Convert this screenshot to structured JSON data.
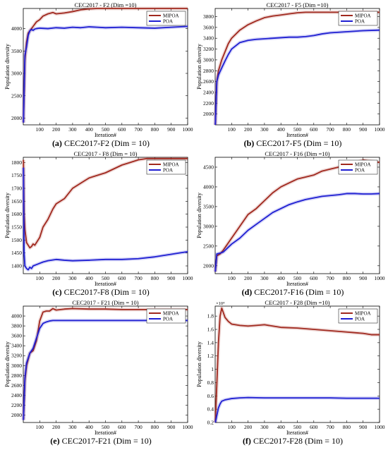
{
  "colors": {
    "mipoa": "#A0281E",
    "poa": "#1E1ED2",
    "axis": "#000000",
    "grid": "#dcdcdc"
  },
  "chart_data": [
    {
      "type": "line",
      "title": "CEC2017 - F2 (Dim =10)",
      "caption_label": "(a)",
      "caption_text": "CEC2017-F2 (Dim = 10)",
      "xlabel": "Iteration#",
      "ylabel": "Population diversity",
      "xlim": [
        0,
        1000
      ],
      "ylim": [
        1850,
        4450
      ],
      "xticks": [
        100,
        200,
        300,
        400,
        500,
        600,
        700,
        800,
        900,
        1000
      ],
      "xtick_labels": [
        "100",
        "200",
        "300",
        "400",
        "500",
        "600",
        "700",
        "800",
        "900",
        "1000"
      ],
      "yticks": [
        2000,
        2500,
        3000,
        3500,
        4000
      ],
      "ytick_labels": [
        "2000",
        "2500",
        "3000",
        "3500",
        "4000"
      ],
      "legend_position": "top-right",
      "grid": false,
      "series": [
        {
          "name": "MIPOA",
          "color": "#A0281E",
          "x": [
            1,
            10,
            20,
            30,
            40,
            50,
            60,
            70,
            80,
            100,
            120,
            150,
            180,
            200,
            250,
            300,
            350,
            400,
            450,
            500,
            600,
            700,
            800,
            900,
            1000
          ],
          "y": [
            1900,
            3300,
            3700,
            3900,
            3950,
            4000,
            4050,
            4100,
            4150,
            4200,
            4280,
            4330,
            4360,
            4330,
            4350,
            4380,
            4420,
            4440,
            4450,
            4450,
            4450,
            4450,
            4450,
            4450,
            4450
          ]
        },
        {
          "name": "POA",
          "color": "#1E1ED2",
          "x": [
            1,
            10,
            20,
            30,
            40,
            50,
            60,
            70,
            80,
            100,
            150,
            200,
            250,
            300,
            350,
            400,
            450,
            500,
            600,
            700,
            800,
            900,
            1000
          ],
          "y": [
            1900,
            3400,
            3600,
            3850,
            3950,
            3980,
            3960,
            3990,
            4000,
            4010,
            4000,
            4020,
            4010,
            4030,
            4020,
            4040,
            4030,
            4020,
            4030,
            4020,
            4010,
            4030,
            4050
          ]
        }
      ]
    },
    {
      "type": "line",
      "title": "CEC2017 - F5 (Dim =10)",
      "caption_label": "(b)",
      "caption_text": "CEC2017-F5 (Dim = 10)",
      "xlabel": "Iteration#",
      "ylabel": "Population diversity",
      "xlim": [
        0,
        1000
      ],
      "ylim": [
        1800,
        3950
      ],
      "xticks": [
        100,
        200,
        300,
        400,
        500,
        600,
        700,
        800,
        900,
        1000
      ],
      "xtick_labels": [
        "100",
        "200",
        "300",
        "400",
        "500",
        "600",
        "700",
        "800",
        "900",
        "1000"
      ],
      "yticks": [
        2000,
        2200,
        2400,
        2600,
        2800,
        3000,
        3200,
        3400,
        3600,
        3800
      ],
      "ytick_labels": [
        "2000",
        "2200",
        "2400",
        "2600",
        "2800",
        "3000",
        "3200",
        "3400",
        "3600",
        "3800"
      ],
      "legend_position": "top-right",
      "grid": false,
      "series": [
        {
          "name": "MIPOA",
          "color": "#A0281E",
          "x": [
            1,
            10,
            20,
            40,
            60,
            80,
            100,
            150,
            200,
            250,
            300,
            350,
            400,
            450,
            500,
            550,
            600,
            700,
            800,
            900,
            1000
          ],
          "y": [
            1800,
            2600,
            2800,
            3000,
            3150,
            3300,
            3400,
            3550,
            3650,
            3720,
            3780,
            3810,
            3830,
            3850,
            3870,
            3880,
            3880,
            3880,
            3880,
            3880,
            3880
          ]
        },
        {
          "name": "POA",
          "color": "#1E1ED2",
          "x": [
            1,
            10,
            20,
            40,
            60,
            80,
            100,
            150,
            200,
            250,
            300,
            350,
            400,
            450,
            500,
            550,
            600,
            650,
            700,
            800,
            900,
            1000
          ],
          "y": [
            1800,
            2600,
            2720,
            2850,
            2980,
            3100,
            3200,
            3320,
            3360,
            3380,
            3390,
            3400,
            3410,
            3420,
            3420,
            3430,
            3450,
            3480,
            3500,
            3520,
            3540,
            3550
          ]
        }
      ]
    },
    {
      "type": "line",
      "title": "CEC2017 - F8 (Dim = 10)",
      "caption_label": "(c)",
      "caption_text": "CEC2017-F8 (Dim = 10)",
      "xlabel": "Iteration#",
      "ylabel": "Population diversity",
      "xlim": [
        0,
        1000
      ],
      "ylim": [
        1370,
        1820
      ],
      "xticks": [
        100,
        200,
        300,
        400,
        500,
        600,
        700,
        800,
        900,
        1000
      ],
      "xtick_labels": [
        "100",
        "200",
        "300",
        "400",
        "500",
        "600",
        "700",
        "800",
        "900",
        "1000"
      ],
      "yticks": [
        1400,
        1450,
        1500,
        1550,
        1600,
        1650,
        1700,
        1750,
        1800
      ],
      "ytick_labels": [
        "1400",
        "1450",
        "1500",
        "1550",
        "1600",
        "1650",
        "1700",
        "1750",
        "1800"
      ],
      "legend_position": "top-right",
      "grid": false,
      "series": [
        {
          "name": "MIPOA",
          "color": "#A0281E",
          "x": [
            1,
            5,
            10,
            20,
            30,
            40,
            50,
            60,
            70,
            80,
            100,
            120,
            150,
            180,
            200,
            250,
            300,
            350,
            400,
            450,
            500,
            550,
            600,
            650,
            700,
            750,
            800,
            900,
            1000
          ],
          "y": [
            1810,
            1600,
            1540,
            1490,
            1480,
            1470,
            1475,
            1485,
            1480,
            1490,
            1510,
            1550,
            1580,
            1620,
            1640,
            1660,
            1700,
            1720,
            1740,
            1750,
            1760,
            1775,
            1790,
            1800,
            1810,
            1815,
            1815,
            1815,
            1815
          ]
        },
        {
          "name": "POA",
          "color": "#1E1ED2",
          "x": [
            1,
            5,
            10,
            20,
            30,
            40,
            50,
            60,
            80,
            100,
            120,
            150,
            200,
            250,
            300,
            400,
            500,
            600,
            700,
            800,
            900,
            950,
            1000
          ],
          "y": [
            1780,
            1450,
            1400,
            1390,
            1385,
            1395,
            1390,
            1400,
            1405,
            1410,
            1415,
            1420,
            1425,
            1422,
            1420,
            1422,
            1425,
            1425,
            1428,
            1435,
            1445,
            1450,
            1455
          ]
        }
      ]
    },
    {
      "type": "line",
      "title": "CEC2017 - F16 (Dim =10)",
      "caption_label": "(d)",
      "caption_text": "CEC2017-F16 (Dim = 10)",
      "xlabel": "Iteration#",
      "ylabel": "Population diversity",
      "xlim": [
        0,
        1000
      ],
      "ylim": [
        1800,
        4750
      ],
      "xticks": [
        100,
        200,
        300,
        400,
        500,
        600,
        700,
        800,
        900,
        1000
      ],
      "xtick_labels": [
        "100",
        "200",
        "300",
        "400",
        "500",
        "600",
        "700",
        "800",
        "900",
        "1000"
      ],
      "yticks": [
        2000,
        2500,
        3000,
        3500,
        4000,
        4500
      ],
      "ytick_labels": [
        "2000",
        "2500",
        "3000",
        "3500",
        "4000",
        "4500"
      ],
      "legend_position": "top-right",
      "grid": false,
      "series": [
        {
          "name": "MIPOA",
          "color": "#A0281E",
          "x": [
            1,
            10,
            30,
            50,
            100,
            150,
            200,
            250,
            300,
            350,
            400,
            450,
            500,
            550,
            600,
            650,
            700,
            750,
            800,
            850,
            900,
            950,
            1000
          ],
          "y": [
            1850,
            2250,
            2300,
            2400,
            2700,
            3000,
            3300,
            3450,
            3650,
            3850,
            4000,
            4100,
            4200,
            4250,
            4300,
            4400,
            4450,
            4500,
            4550,
            4600,
            4680,
            4650,
            4620
          ]
        },
        {
          "name": "POA",
          "color": "#1E1ED2",
          "x": [
            1,
            10,
            30,
            50,
            100,
            150,
            200,
            250,
            300,
            350,
            400,
            450,
            500,
            550,
            600,
            650,
            700,
            750,
            800,
            850,
            900,
            950,
            1000
          ],
          "y": [
            1850,
            2300,
            2320,
            2350,
            2550,
            2700,
            2900,
            3050,
            3200,
            3350,
            3450,
            3550,
            3620,
            3680,
            3720,
            3760,
            3780,
            3800,
            3830,
            3830,
            3820,
            3820,
            3830
          ]
        }
      ]
    },
    {
      "type": "line",
      "title": "CEC2017 - F21 (Dim = 10)",
      "caption_label": "(e)",
      "caption_text": "CEC2017-F21 (Dim = 10)",
      "xlabel": "Iteration#",
      "ylabel": "Population diversity",
      "xlim": [
        0,
        1000
      ],
      "ylim": [
        1850,
        4200
      ],
      "xticks": [
        100,
        200,
        300,
        400,
        500,
        600,
        700,
        800,
        900,
        1000
      ],
      "xtick_labels": [
        "100",
        "200",
        "300",
        "400",
        "500",
        "600",
        "700",
        "800",
        "900",
        "1000"
      ],
      "yticks": [
        2000,
        2200,
        2400,
        2600,
        2800,
        3000,
        3200,
        3400,
        3600,
        3800,
        4000
      ],
      "ytick_labels": [
        "2000",
        "2200",
        "2400",
        "2600",
        "2800",
        "3000",
        "3200",
        "3400",
        "3600",
        "3800",
        "4000"
      ],
      "legend_position": "top-right",
      "grid": false,
      "series": [
        {
          "name": "MIPOA",
          "color": "#A0281E",
          "x": [
            1,
            10,
            20,
            40,
            60,
            80,
            100,
            120,
            140,
            160,
            180,
            200,
            250,
            300,
            400,
            500,
            600,
            700,
            800,
            900,
            1000
          ],
          "y": [
            1900,
            2700,
            3000,
            3250,
            3300,
            3500,
            3900,
            4080,
            4100,
            4100,
            4150,
            4120,
            4140,
            4150,
            4140,
            4140,
            4130,
            4130,
            4130,
            4130,
            4130
          ]
        },
        {
          "name": "POA",
          "color": "#1E1ED2",
          "x": [
            1,
            10,
            20,
            40,
            60,
            80,
            100,
            120,
            140,
            160,
            180,
            200,
            250,
            300,
            400,
            500,
            600,
            700,
            800,
            900,
            1000
          ],
          "y": [
            1900,
            2750,
            3050,
            3250,
            3350,
            3550,
            3750,
            3850,
            3880,
            3900,
            3910,
            3910,
            3910,
            3910,
            3910,
            3910,
            3910,
            3910,
            3910,
            3910,
            3910
          ]
        }
      ]
    },
    {
      "type": "line",
      "title": "CEC2017 - F28 (Dim =10)",
      "caption_label": "(f)",
      "caption_text": "CEC2017-F28 (Dim = 10)",
      "xlabel": "Iteration#",
      "ylabel": "Population diversity",
      "y_multiplier": "×10⁴",
      "xlim": [
        0,
        1000
      ],
      "ylim": [
        0.2,
        1.95
      ],
      "xticks": [
        100,
        200,
        300,
        400,
        500,
        600,
        700,
        800,
        900,
        1000
      ],
      "xtick_labels": [
        "100",
        "200",
        "300",
        "400",
        "500",
        "600",
        "700",
        "800",
        "900",
        "1000"
      ],
      "yticks": [
        0.2,
        0.4,
        0.6,
        0.8,
        1,
        1.2,
        1.4,
        1.6,
        1.8
      ],
      "ytick_labels": [
        "0.2",
        "0.4",
        "0.6",
        "0.8",
        "1",
        "1.2",
        "1.4",
        "1.6",
        "1.8"
      ],
      "legend_position": "top-right",
      "grid": false,
      "series": [
        {
          "name": "MIPOA",
          "color": "#A0281E",
          "x": [
            1,
            20,
            30,
            40,
            50,
            60,
            80,
            100,
            150,
            200,
            250,
            300,
            350,
            400,
            500,
            600,
            700,
            800,
            900,
            950,
            1000
          ],
          "y": [
            0.2,
            1.4,
            1.8,
            1.92,
            1.85,
            1.78,
            1.72,
            1.68,
            1.66,
            1.65,
            1.66,
            1.67,
            1.65,
            1.63,
            1.62,
            1.6,
            1.58,
            1.56,
            1.54,
            1.52,
            1.52
          ]
        },
        {
          "name": "POA",
          "color": "#1E1ED2",
          "x": [
            1,
            20,
            30,
            40,
            60,
            80,
            100,
            150,
            200,
            300,
            400,
            500,
            600,
            700,
            800,
            900,
            1000
          ],
          "y": [
            0.2,
            0.42,
            0.48,
            0.52,
            0.54,
            0.55,
            0.56,
            0.57,
            0.575,
            0.57,
            0.57,
            0.57,
            0.57,
            0.57,
            0.565,
            0.565,
            0.565
          ]
        }
      ]
    }
  ]
}
